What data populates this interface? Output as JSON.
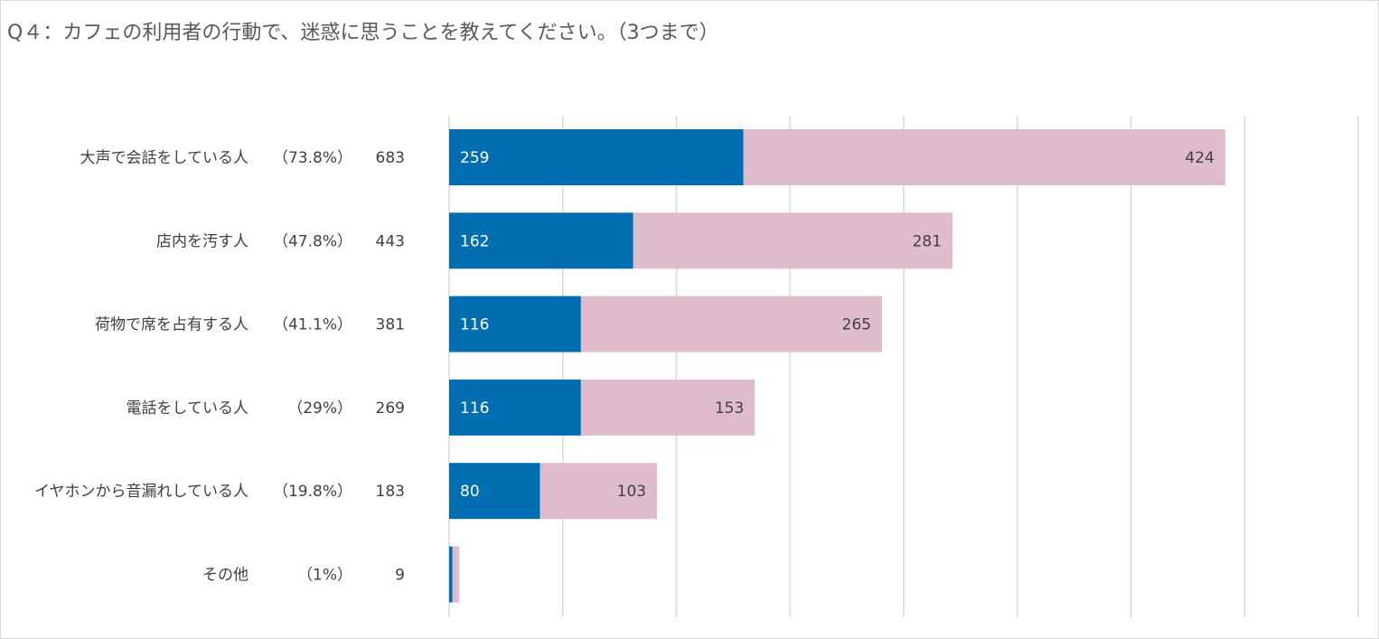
{
  "title": "Q４：カフェの利用者の行動で、迷惑に思うことを教えてください。（3つまで）",
  "colors": {
    "series1": "#006eb0",
    "series2": "#dfbccb",
    "grid": "#d9d9d9",
    "text": "#404040"
  },
  "chart_data": {
    "type": "bar",
    "orientation": "horizontal",
    "stacked": true,
    "title": "Q４：カフェの利用者の行動で、迷惑に思うことを教えてください。（3つまで）",
    "categories": [
      "大声で会話をしている人　（73.8%）　683",
      "店内を汚す人　（47.8%）　443",
      "荷物で席を占有する人　（41.1%）　381",
      "電話をしている人　（29%）　269",
      "イヤホンから音漏れしている人　（19.8%）　183",
      "その他　（1%）　9"
    ],
    "series": [
      {
        "values": [
          259,
          162,
          116,
          116,
          80,
          3
        ]
      },
      {
        "values": [
          424,
          281,
          265,
          153,
          103,
          6
        ]
      }
    ],
    "data_labels": [
      [
        "259",
        "424"
      ],
      [
        "162",
        "281"
      ],
      [
        "116",
        "265"
      ],
      [
        "116",
        "153"
      ],
      [
        "80",
        "103"
      ],
      [
        "",
        ""
      ]
    ],
    "xlim": [
      0,
      800
    ],
    "grid": true,
    "legend": "none"
  }
}
